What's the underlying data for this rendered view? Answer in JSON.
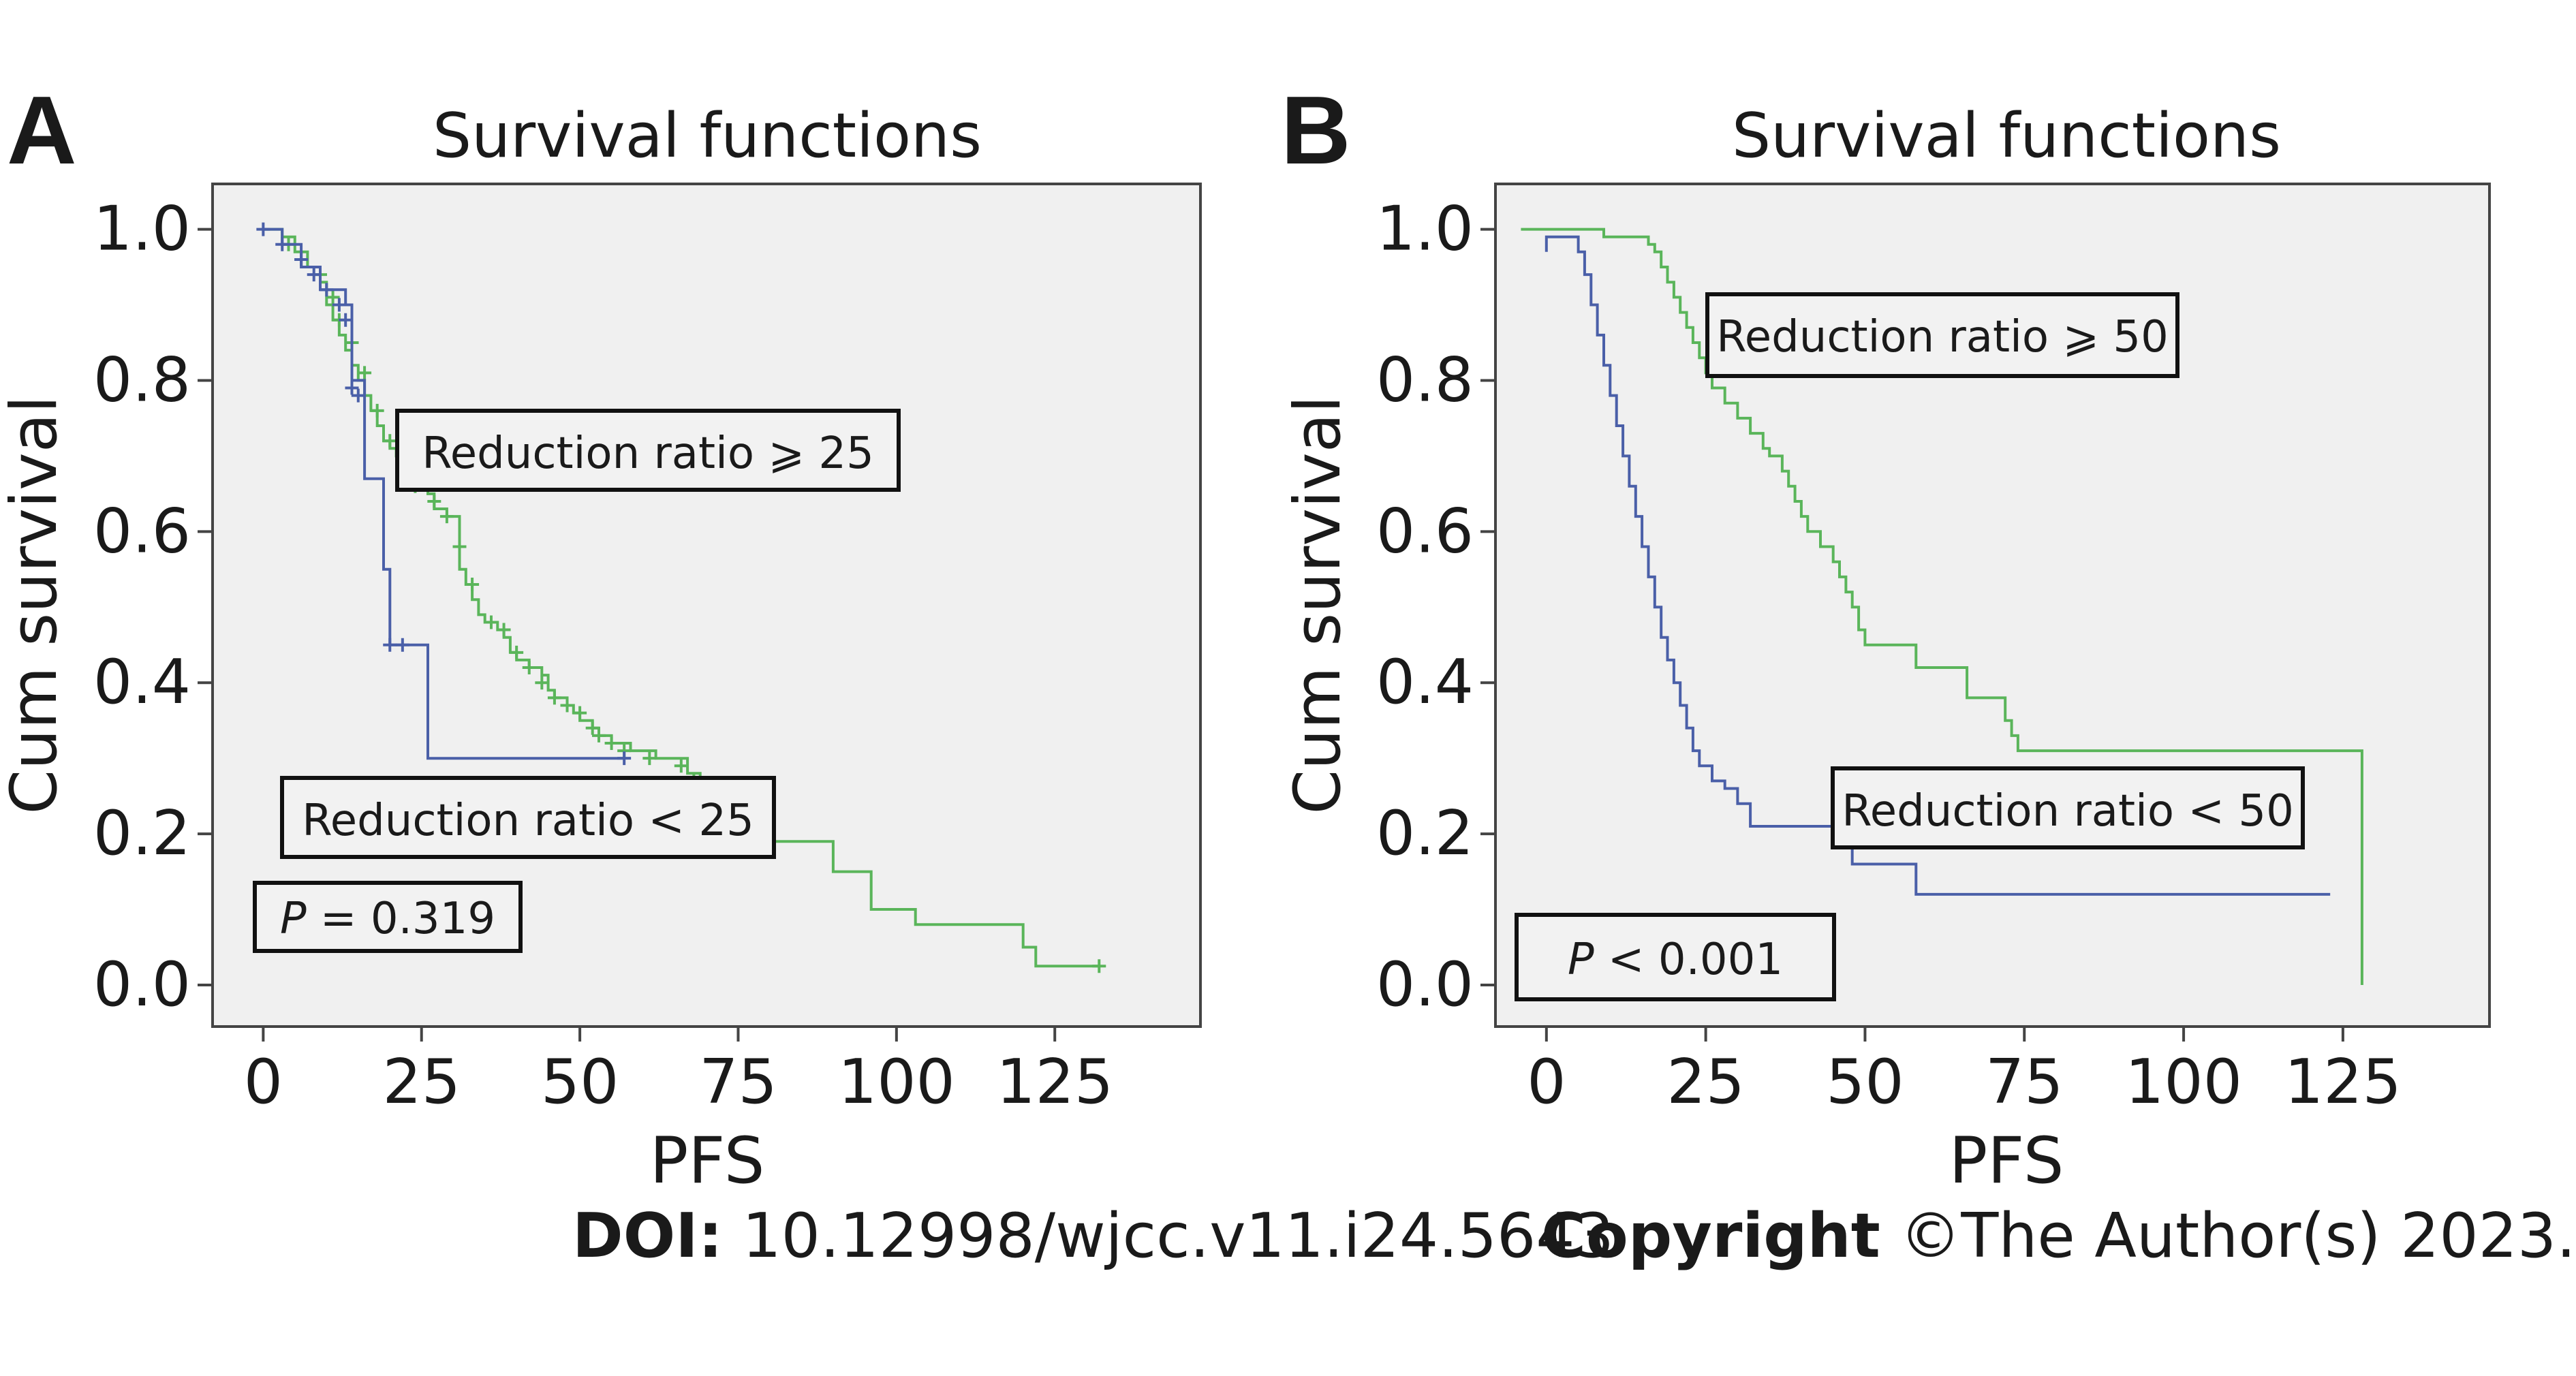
{
  "figure": {
    "doi_label": "DOI:",
    "doi_value": "10.12998/wjcc.v11.i24.5643",
    "copyright_label": "Copyright",
    "copyright_value": "©The Author(s) 2023."
  },
  "chart_data": [
    {
      "type": "line",
      "panel_label": "A",
      "title": "Survival functions",
      "xlabel": "PFS",
      "ylabel": "Cum survival",
      "xlim": [
        -8,
        148
      ],
      "ylim": [
        -0.055,
        1.06
      ],
      "xticks": [
        0,
        25,
        50,
        75,
        100,
        125
      ],
      "yticks": [
        "0.0",
        "0.2",
        "0.4",
        "0.6",
        "0.8",
        "1.0"
      ],
      "grid": false,
      "annotations": [
        {
          "text": "Reduction ratio ⩾ 25"
        },
        {
          "text": "Reduction ratio < 25"
        },
        {
          "p_symbol": "P",
          "text": " = 0.319"
        }
      ],
      "series": [
        {
          "color": "#5ab55a",
          "steps": [
            [
              0,
              1.0
            ],
            [
              3,
              0.99
            ],
            [
              5,
              0.97
            ],
            [
              7,
              0.95
            ],
            [
              9,
              0.93
            ],
            [
              10,
              0.9
            ],
            [
              11,
              0.88
            ],
            [
              12,
              0.86
            ],
            [
              13,
              0.84
            ],
            [
              14,
              0.82
            ],
            [
              15,
              0.8
            ],
            [
              16,
              0.78
            ],
            [
              17,
              0.76
            ],
            [
              18,
              0.74
            ],
            [
              19,
              0.72
            ],
            [
              20,
              0.71
            ],
            [
              21,
              0.7
            ],
            [
              22,
              0.69
            ],
            [
              23,
              0.68
            ],
            [
              24,
              0.67
            ],
            [
              25,
              0.66
            ],
            [
              26,
              0.65
            ],
            [
              27,
              0.63
            ],
            [
              29,
              0.62
            ],
            [
              31,
              0.55
            ],
            [
              32,
              0.53
            ],
            [
              33,
              0.51
            ],
            [
              34,
              0.49
            ],
            [
              35,
              0.48
            ],
            [
              37,
              0.47
            ],
            [
              38,
              0.46
            ],
            [
              39,
              0.44
            ],
            [
              40,
              0.43
            ],
            [
              42,
              0.42
            ],
            [
              44,
              0.41
            ],
            [
              45,
              0.39
            ],
            [
              46,
              0.38
            ],
            [
              48,
              0.37
            ],
            [
              49,
              0.36
            ],
            [
              50,
              0.35
            ],
            [
              52,
              0.34
            ],
            [
              53,
              0.33
            ],
            [
              55,
              0.32
            ],
            [
              58,
              0.31
            ],
            [
              62,
              0.3
            ],
            [
              67,
              0.28
            ],
            [
              69,
              0.26
            ],
            [
              71,
              0.24
            ],
            [
              74,
              0.22
            ],
            [
              78,
              0.19
            ],
            [
              80,
              0.19
            ],
            [
              90,
              0.19
            ],
            [
              90,
              0.15
            ],
            [
              96,
              0.15
            ],
            [
              96,
              0.1
            ],
            [
              103,
              0.1
            ],
            [
              103,
              0.08
            ],
            [
              120,
              0.08
            ],
            [
              120,
              0.05
            ],
            [
              122,
              0.05
            ],
            [
              122,
              0.025
            ],
            [
              132,
              0.025
            ]
          ],
          "censored": [
            [
              4,
              0.98
            ],
            [
              6,
              0.96
            ],
            [
              9,
              0.94
            ],
            [
              11,
              0.91
            ],
            [
              12,
              0.88
            ],
            [
              14,
              0.85
            ],
            [
              16,
              0.81
            ],
            [
              18,
              0.76
            ],
            [
              20,
              0.72
            ],
            [
              22,
              0.68
            ],
            [
              24,
              0.66
            ],
            [
              27,
              0.64
            ],
            [
              29,
              0.62
            ],
            [
              31,
              0.58
            ],
            [
              33,
              0.53
            ],
            [
              36,
              0.48
            ],
            [
              38,
              0.47
            ],
            [
              40,
              0.44
            ],
            [
              42,
              0.42
            ],
            [
              44,
              0.4
            ],
            [
              46,
              0.38
            ],
            [
              48,
              0.37
            ],
            [
              50,
              0.36
            ],
            [
              52,
              0.34
            ],
            [
              53,
              0.33
            ],
            [
              55,
              0.32
            ],
            [
              57,
              0.31
            ],
            [
              61,
              0.3
            ],
            [
              66,
              0.29
            ],
            [
              68,
              0.27
            ],
            [
              70,
              0.25
            ],
            [
              75,
              0.22
            ],
            [
              77,
              0.2
            ],
            [
              132,
              0.025
            ]
          ]
        },
        {
          "color": "#4a5fa8",
          "steps": [
            [
              0,
              1.0
            ],
            [
              3,
              0.98
            ],
            [
              6,
              0.95
            ],
            [
              9,
              0.92
            ],
            [
              13,
              0.9
            ],
            [
              14,
              0.8
            ],
            [
              16,
              0.78
            ],
            [
              16,
              0.67
            ],
            [
              19,
              0.67
            ],
            [
              19,
              0.55
            ],
            [
              20,
              0.45
            ],
            [
              26,
              0.45
            ],
            [
              26,
              0.3
            ],
            [
              57,
              0.3
            ]
          ],
          "censored": [
            [
              0,
              1.0
            ],
            [
              3,
              0.98
            ],
            [
              6,
              0.96
            ],
            [
              8,
              0.94
            ],
            [
              10,
              0.92
            ],
            [
              12,
              0.9
            ],
            [
              13,
              0.88
            ],
            [
              14,
              0.79
            ],
            [
              15,
              0.78
            ],
            [
              20,
              0.45
            ],
            [
              22,
              0.45
            ],
            [
              57,
              0.3
            ]
          ]
        }
      ]
    },
    {
      "type": "line",
      "panel_label": "B",
      "title": "Survival functions",
      "xlabel": "PFS",
      "ylabel": "Cum survival",
      "xlim": [
        -8,
        148
      ],
      "ylim": [
        -0.055,
        1.06
      ],
      "xticks": [
        0,
        25,
        50,
        75,
        100,
        125
      ],
      "yticks": [
        "0.0",
        "0.2",
        "0.4",
        "0.6",
        "0.8",
        "1.0"
      ],
      "grid": false,
      "annotations": [
        {
          "text": "Reduction ratio ⩾ 50"
        },
        {
          "text": "Reduction ratio < 50"
        },
        {
          "p_symbol": "P",
          "text": " < 0.001"
        }
      ],
      "series": [
        {
          "color": "#5ab55a",
          "steps": [
            [
              -4,
              1.0
            ],
            [
              8,
              1.0
            ],
            [
              9,
              0.99
            ],
            [
              15,
              0.99
            ],
            [
              16,
              0.98
            ],
            [
              17,
              0.97
            ],
            [
              18,
              0.95
            ],
            [
              19,
              0.93
            ],
            [
              20,
              0.91
            ],
            [
              21,
              0.89
            ],
            [
              22,
              0.87
            ],
            [
              23,
              0.85
            ],
            [
              24,
              0.83
            ],
            [
              25,
              0.81
            ],
            [
              26,
              0.79
            ],
            [
              28,
              0.77
            ],
            [
              30,
              0.75
            ],
            [
              32,
              0.73
            ],
            [
              34,
              0.71
            ],
            [
              35,
              0.7
            ],
            [
              37,
              0.68
            ],
            [
              38,
              0.66
            ],
            [
              39,
              0.64
            ],
            [
              40,
              0.62
            ],
            [
              41,
              0.6
            ],
            [
              43,
              0.58
            ],
            [
              45,
              0.56
            ],
            [
              46,
              0.54
            ],
            [
              47,
              0.52
            ],
            [
              48,
              0.5
            ],
            [
              49,
              0.47
            ],
            [
              50,
              0.45
            ],
            [
              56,
              0.45
            ],
            [
              58,
              0.42
            ],
            [
              65,
              0.42
            ],
            [
              66,
              0.38
            ],
            [
              72,
              0.35
            ],
            [
              73,
              0.33
            ],
            [
              74,
              0.31
            ],
            [
              128,
              0.31
            ],
            [
              128,
              0.0
            ]
          ],
          "censored": []
        },
        {
          "color": "#4a5fa8",
          "steps": [
            [
              0,
              0.97
            ],
            [
              0,
              0.99
            ],
            [
              5,
              0.99
            ],
            [
              5,
              0.97
            ],
            [
              6,
              0.94
            ],
            [
              7,
              0.9
            ],
            [
              8,
              0.86
            ],
            [
              9,
              0.82
            ],
            [
              10,
              0.78
            ],
            [
              11,
              0.74
            ],
            [
              12,
              0.7
            ],
            [
              13,
              0.66
            ],
            [
              14,
              0.62
            ],
            [
              15,
              0.58
            ],
            [
              16,
              0.54
            ],
            [
              17,
              0.5
            ],
            [
              18,
              0.46
            ],
            [
              19,
              0.43
            ],
            [
              20,
              0.4
            ],
            [
              21,
              0.37
            ],
            [
              22,
              0.34
            ],
            [
              23,
              0.31
            ],
            [
              24,
              0.29
            ],
            [
              26,
              0.27
            ],
            [
              28,
              0.26
            ],
            [
              30,
              0.24
            ],
            [
              32,
              0.21
            ],
            [
              46,
              0.21
            ],
            [
              48,
              0.16
            ],
            [
              58,
              0.16
            ],
            [
              58,
              0.12
            ],
            [
              123,
              0.12
            ]
          ],
          "censored": []
        }
      ]
    }
  ]
}
